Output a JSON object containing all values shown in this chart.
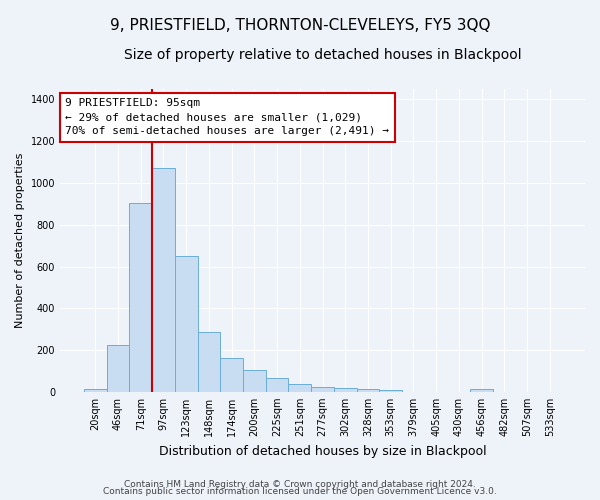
{
  "title": "9, PRIESTFIELD, THORNTON-CLEVELEYS, FY5 3QQ",
  "subtitle": "Size of property relative to detached houses in Blackpool",
  "xlabel": "Distribution of detached houses by size in Blackpool",
  "ylabel": "Number of detached properties",
  "bar_labels": [
    "20sqm",
    "46sqm",
    "71sqm",
    "97sqm",
    "123sqm",
    "148sqm",
    "174sqm",
    "200sqm",
    "225sqm",
    "251sqm",
    "277sqm",
    "302sqm",
    "328sqm",
    "353sqm",
    "379sqm",
    "405sqm",
    "430sqm",
    "456sqm",
    "482sqm",
    "507sqm",
    "533sqm"
  ],
  "bar_values": [
    15,
    225,
    905,
    1070,
    650,
    285,
    160,
    105,
    68,
    35,
    22,
    20,
    15,
    10,
    0,
    0,
    0,
    12,
    0,
    0,
    0
  ],
  "bar_color": "#c9ddf2",
  "bar_edge_color": "#6aaed6",
  "vline_x_index": 3,
  "vline_color": "#cc0000",
  "annotation_line1": "9 PRIESTFIELD: 95sqm",
  "annotation_line2": "← 29% of detached houses are smaller (1,029)",
  "annotation_line3": "70% of semi-detached houses are larger (2,491) →",
  "annotation_box_color": "#ffffff",
  "annotation_box_edge": "#cc0000",
  "ylim": [
    0,
    1450
  ],
  "yticks": [
    0,
    200,
    400,
    600,
    800,
    1000,
    1200,
    1400
  ],
  "footer1": "Contains HM Land Registry data © Crown copyright and database right 2024.",
  "footer2": "Contains public sector information licensed under the Open Government Licence v3.0.",
  "bg_color": "#eef2f9",
  "grid_color": "#ffffff",
  "title_fontsize": 11,
  "subtitle_fontsize": 10,
  "xlabel_fontsize": 9,
  "ylabel_fontsize": 8,
  "tick_fontsize": 7,
  "annotation_fontsize": 8,
  "footer_fontsize": 6.5
}
